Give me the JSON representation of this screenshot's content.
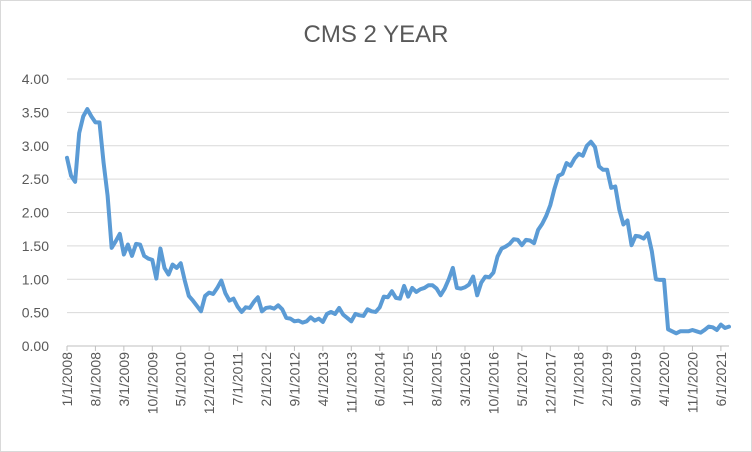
{
  "chart_data": {
    "type": "line",
    "title": "CMS 2 YEAR",
    "xlabel": "",
    "ylabel": "",
    "ylim": [
      0,
      4
    ],
    "yticks": [
      "0.00",
      "0.50",
      "1.00",
      "1.50",
      "2.00",
      "2.50",
      "3.00",
      "3.50",
      "4.00"
    ],
    "xticks": [
      "1/1/2008",
      "8/1/2008",
      "3/1/2009",
      "10/1/2009",
      "5/1/2010",
      "12/1/2010",
      "7/1/2011",
      "2/1/2012",
      "9/1/2012",
      "4/1/2013",
      "11/1/2013",
      "6/1/2014",
      "1/1/2015",
      "8/1/2015",
      "3/1/2016",
      "10/1/2016",
      "5/1/2017",
      "12/1/2017",
      "7/1/2018",
      "2/1/2019",
      "9/1/2019",
      "4/1/2020",
      "11/1/2020",
      "6/1/2021"
    ],
    "grid": true,
    "legend": "none",
    "line_color": "#5b9bd5",
    "series": [
      {
        "x_start": "1/1/2008",
        "x_step": "1 month",
        "values": [
          2.82,
          2.55,
          2.46,
          3.19,
          3.44,
          3.55,
          3.44,
          3.35,
          3.35,
          2.75,
          2.25,
          1.47,
          1.57,
          1.68,
          1.37,
          1.52,
          1.35,
          1.53,
          1.52,
          1.35,
          1.31,
          1.29,
          1.01,
          1.46,
          1.17,
          1.07,
          1.22,
          1.17,
          1.24,
          0.98,
          0.75,
          0.68,
          0.6,
          0.52,
          0.75,
          0.8,
          0.78,
          0.87,
          0.98,
          0.79,
          0.68,
          0.71,
          0.59,
          0.51,
          0.58,
          0.57,
          0.66,
          0.73,
          0.52,
          0.57,
          0.58,
          0.56,
          0.61,
          0.55,
          0.42,
          0.41,
          0.37,
          0.38,
          0.35,
          0.37,
          0.43,
          0.38,
          0.41,
          0.36,
          0.48,
          0.51,
          0.48,
          0.57,
          0.47,
          0.42,
          0.37,
          0.48,
          0.46,
          0.45,
          0.55,
          0.52,
          0.51,
          0.58,
          0.74,
          0.73,
          0.82,
          0.72,
          0.71,
          0.9,
          0.74,
          0.87,
          0.81,
          0.85,
          0.87,
          0.91,
          0.91,
          0.86,
          0.76,
          0.86,
          1.0,
          1.17,
          0.87,
          0.86,
          0.88,
          0.92,
          1.04,
          0.76,
          0.95,
          1.04,
          1.03,
          1.1,
          1.34,
          1.46,
          1.49,
          1.53,
          1.6,
          1.59,
          1.51,
          1.59,
          1.58,
          1.54,
          1.74,
          1.83,
          1.95,
          2.11,
          2.35,
          2.55,
          2.58,
          2.74,
          2.7,
          2.81,
          2.88,
          2.85,
          3.0,
          3.06,
          2.98,
          2.69,
          2.64,
          2.64,
          2.37,
          2.39,
          2.04,
          1.82,
          1.88,
          1.51,
          1.65,
          1.64,
          1.61,
          1.69,
          1.42,
          1.0,
          0.99,
          0.99,
          0.25,
          0.22,
          0.19,
          0.22,
          0.22,
          0.22,
          0.24,
          0.22,
          0.2,
          0.24,
          0.29,
          0.28,
          0.24,
          0.32,
          0.27,
          0.29
        ]
      }
    ]
  }
}
